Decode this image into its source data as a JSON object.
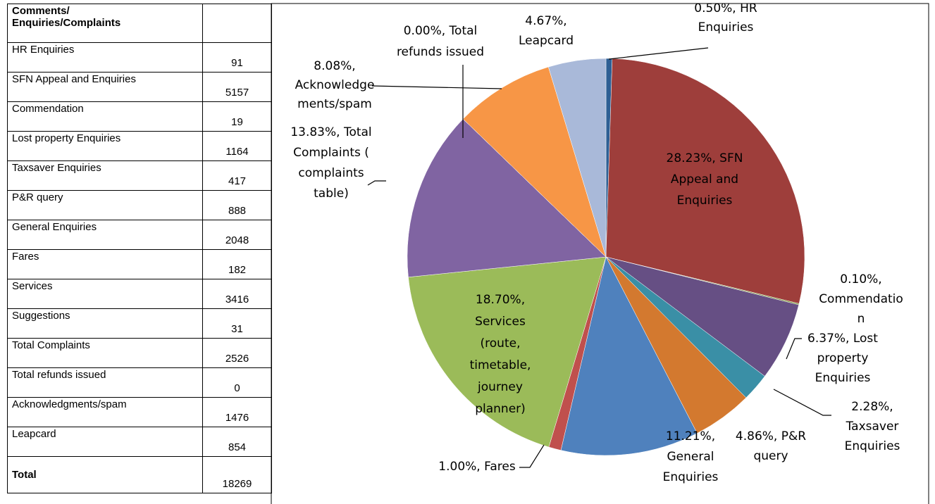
{
  "table": {
    "header": [
      "Comments/",
      "Enquiries/Complaints"
    ],
    "rows": [
      [
        "HR Enquiries",
        91
      ],
      [
        "SFN Appeal and Enquiries",
        5157
      ],
      [
        "Commendation",
        19
      ],
      [
        "Lost property Enquiries",
        1164
      ],
      [
        "Taxsaver Enquiries",
        417
      ],
      [
        "P&R query",
        888
      ],
      [
        "General Enquiries",
        2048
      ],
      [
        "Fares",
        182
      ],
      [
        "Services",
        3416
      ],
      [
        "Suggestions",
        31
      ],
      [
        "Total Complaints",
        2526
      ],
      [
        "Total refunds issued",
        0
      ],
      [
        "Acknowledgments/spam",
        1476
      ],
      [
        "Leapcard",
        854
      ]
    ],
    "total": [
      "Total",
      18269
    ]
  },
  "chart_data": {
    "type": "pie",
    "values": [
      0.5,
      28.23,
      0.1,
      6.37,
      2.28,
      4.86,
      11.21,
      1.0,
      18.7,
      13.83,
      0.0,
      8.08,
      4.67
    ],
    "value_labels": [
      [
        "0.50%, HR",
        "Enquiries"
      ],
      [
        "28.23%, SFN",
        "Appeal and",
        "Enquiries"
      ],
      [
        "0.10%,",
        "Commendatio",
        "n"
      ],
      [
        "6.37%, Lost",
        "property",
        "Enquiries"
      ],
      [
        "2.28%,",
        "Taxsaver",
        "Enquiries"
      ],
      [
        "4.86%, P&R",
        "query"
      ],
      [
        "11.21%,",
        "General",
        "Enquiries"
      ],
      [
        "1.00%, Fares"
      ],
      [
        "18.70%,",
        "Services",
        "(route,",
        "timetable,",
        "journey",
        "planner)"
      ],
      [
        "13.83%, Total",
        "Complaints (",
        "complaints",
        "table)"
      ],
      [
        "0.00%, Total",
        "refunds issued"
      ],
      [
        "8.08%,",
        "Acknowledge",
        "ments/spam"
      ],
      [
        "4.67%,",
        "Leapcard"
      ]
    ],
    "colors": [
      "#2e5f94",
      "#9e3e3b",
      "#7d963f",
      "#664f84",
      "#3a8fa6",
      "#d3792f",
      "#4f81bd",
      "#c0504d",
      "#9bbb59",
      "#8064a2",
      "#4bacc6",
      "#f79646",
      "#a9b9d9"
    ]
  }
}
